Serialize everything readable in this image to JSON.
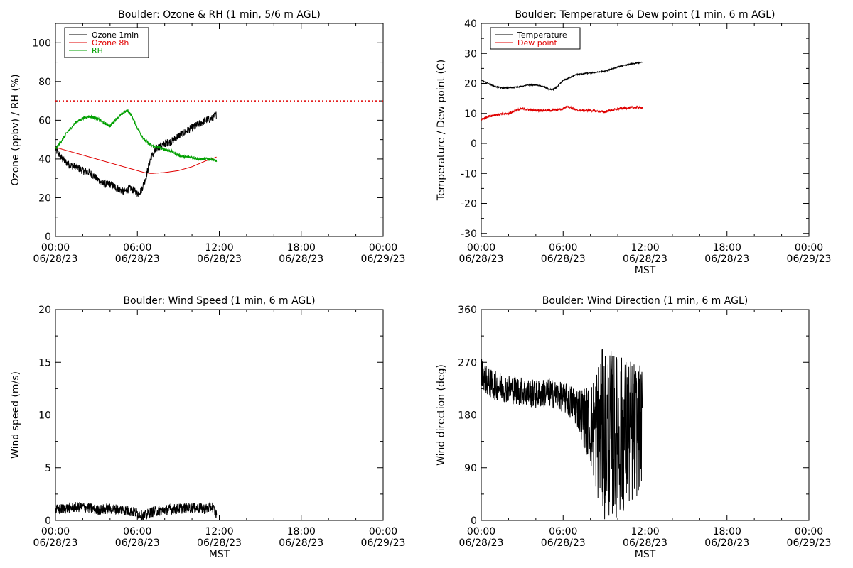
{
  "chart_data": [
    {
      "id": "ozone-rh",
      "type": "line",
      "title": "Boulder: Ozone & RH (1 min, 5/6 m AGL)",
      "ylabel": "Ozone (ppbv) / RH (%)",
      "xlabel": "",
      "ylim": [
        0,
        110
      ],
      "yticks": [
        0,
        20,
        40,
        60,
        80,
        100
      ],
      "xlim_hours": [
        0,
        24
      ],
      "xticks": [
        {
          "hour": 0,
          "time": "00:00",
          "date": "06/28/23"
        },
        {
          "hour": 6,
          "time": "06:00",
          "date": "06/28/23"
        },
        {
          "hour": 12,
          "time": "12:00",
          "date": "06/28/23"
        },
        {
          "hour": 18,
          "time": "18:00",
          "date": "06/28/23"
        },
        {
          "hour": 24,
          "time": "00:00",
          "date": "06/29/23"
        }
      ],
      "reference_line": {
        "y": 70,
        "color": "#e00000",
        "style": "dotted"
      },
      "legend": {
        "position": "top-left",
        "entries": [
          {
            "label": "Ozone 1min",
            "color": "#000000"
          },
          {
            "label": "Ozone 8h",
            "color": "#e00000"
          },
          {
            "label": "RH",
            "color": "#00a000"
          }
        ]
      },
      "series": [
        {
          "name": "Ozone 1min",
          "color": "#000000",
          "noise": 2.0,
          "points": [
            [
              0,
              45
            ],
            [
              0.5,
              40
            ],
            [
              1,
              37
            ],
            [
              1.5,
              36
            ],
            [
              2,
              34
            ],
            [
              2.5,
              33
            ],
            [
              3,
              30
            ],
            [
              3.5,
              27
            ],
            [
              4,
              27
            ],
            [
              4.5,
              25
            ],
            [
              5,
              23
            ],
            [
              5.5,
              25
            ],
            [
              6,
              22
            ],
            [
              6.3,
              24
            ],
            [
              6.6,
              30
            ],
            [
              7,
              41
            ],
            [
              7.5,
              46
            ],
            [
              8,
              48
            ],
            [
              8.5,
              49
            ],
            [
              9,
              52
            ],
            [
              9.5,
              54
            ],
            [
              10,
              56
            ],
            [
              10.5,
              58
            ],
            [
              11,
              60
            ],
            [
              11.5,
              61
            ],
            [
              11.8,
              63
            ]
          ]
        },
        {
          "name": "Ozone 8h",
          "color": "#e00000",
          "noise": 0,
          "points": [
            [
              0,
              46
            ],
            [
              1,
              44
            ],
            [
              2,
              42
            ],
            [
              3,
              40
            ],
            [
              4,
              38
            ],
            [
              5,
              36
            ],
            [
              6,
              34
            ],
            [
              6.5,
              33
            ],
            [
              7,
              32.5
            ],
            [
              8,
              33
            ],
            [
              9,
              34
            ],
            [
              10,
              36
            ],
            [
              11,
              39
            ],
            [
              11.8,
              41
            ]
          ]
        },
        {
          "name": "RH",
          "color": "#00a000",
          "noise": 0.8,
          "points": [
            [
              0,
              45
            ],
            [
              0.5,
              50
            ],
            [
              1,
              55
            ],
            [
              1.5,
              59
            ],
            [
              2,
              61
            ],
            [
              2.5,
              62
            ],
            [
              3,
              61
            ],
            [
              3.5,
              59
            ],
            [
              4,
              57
            ],
            [
              4.5,
              61
            ],
            [
              5,
              64
            ],
            [
              5.3,
              65
            ],
            [
              5.6,
              62
            ],
            [
              6,
              56
            ],
            [
              6.5,
              50
            ],
            [
              7,
              47
            ],
            [
              7.5,
              46
            ],
            [
              8,
              45
            ],
            [
              8.5,
              44
            ],
            [
              9,
              42
            ],
            [
              9.5,
              41
            ],
            [
              10,
              41
            ],
            [
              10.5,
              40
            ],
            [
              11,
              40
            ],
            [
              11.5,
              40
            ],
            [
              11.8,
              39
            ]
          ]
        }
      ]
    },
    {
      "id": "temp-dew",
      "type": "line",
      "title": "Boulder: Temperature & Dew point (1 min, 6 m AGL)",
      "ylabel": "Temperature / Dew point (C)",
      "xlabel": "MST",
      "ylim": [
        -31,
        40
      ],
      "yticks": [
        -30,
        -20,
        -10,
        0,
        10,
        20,
        30,
        40
      ],
      "xlim_hours": [
        0,
        24
      ],
      "xticks": [
        {
          "hour": 0,
          "time": "00:00",
          "date": "06/28/23"
        },
        {
          "hour": 6,
          "time": "06:00",
          "date": "06/28/23"
        },
        {
          "hour": 12,
          "time": "12:00",
          "date": "06/28/23"
        },
        {
          "hour": 18,
          "time": "18:00",
          "date": "06/28/23"
        },
        {
          "hour": 24,
          "time": "00:00",
          "date": "06/29/23"
        }
      ],
      "legend": {
        "position": "top-left",
        "entries": [
          {
            "label": "Temperature",
            "color": "#000000"
          },
          {
            "label": "Dew point",
            "color": "#e00000"
          }
        ]
      },
      "series": [
        {
          "name": "Temperature",
          "color": "#000000",
          "noise": 0.2,
          "points": [
            [
              0,
              21
            ],
            [
              0.5,
              20
            ],
            [
              1,
              19
            ],
            [
              1.5,
              18.5
            ],
            [
              2,
              18.5
            ],
            [
              3,
              19
            ],
            [
              3.5,
              19.5
            ],
            [
              4,
              19.5
            ],
            [
              4.5,
              19
            ],
            [
              5,
              18
            ],
            [
              5.3,
              18
            ],
            [
              5.6,
              19
            ],
            [
              6,
              21
            ],
            [
              6.5,
              22
            ],
            [
              7,
              23
            ],
            [
              8,
              23.5
            ],
            [
              9,
              24
            ],
            [
              10,
              25.5
            ],
            [
              11,
              26.5
            ],
            [
              11.8,
              27
            ]
          ]
        },
        {
          "name": "Dew point",
          "color": "#e00000",
          "noise": 0.4,
          "points": [
            [
              0,
              8
            ],
            [
              0.5,
              9
            ],
            [
              1,
              9.5
            ],
            [
              2,
              10
            ],
            [
              2.5,
              11
            ],
            [
              3,
              11.5
            ],
            [
              4,
              11
            ],
            [
              5,
              11
            ],
            [
              6,
              11.5
            ],
            [
              6.3,
              12.5
            ],
            [
              7,
              11
            ],
            [
              8,
              11
            ],
            [
              9,
              10.5
            ],
            [
              10,
              11.5
            ],
            [
              11,
              12
            ],
            [
              11.8,
              12
            ]
          ]
        }
      ]
    },
    {
      "id": "wind-speed",
      "type": "line",
      "title": "Boulder: Wind Speed (1 min, 6 m AGL)",
      "ylabel": "Wind speed (m/s)",
      "xlabel": "MST",
      "ylim": [
        0,
        20
      ],
      "yticks": [
        0,
        5,
        10,
        15,
        20
      ],
      "xlim_hours": [
        0,
        24
      ],
      "xticks": [
        {
          "hour": 0,
          "time": "00:00",
          "date": "06/28/23"
        },
        {
          "hour": 6,
          "time": "06:00",
          "date": "06/28/23"
        },
        {
          "hour": 12,
          "time": "12:00",
          "date": "06/28/23"
        },
        {
          "hour": 18,
          "time": "18:00",
          "date": "06/28/23"
        },
        {
          "hour": 24,
          "time": "00:00",
          "date": "06/29/23"
        }
      ],
      "series": [
        {
          "name": "",
          "color": "#000000",
          "noise": 0.5,
          "points": [
            [
              0,
              1.0
            ],
            [
              1,
              1.2
            ],
            [
              2,
              1.3
            ],
            [
              3,
              1.0
            ],
            [
              4,
              1.1
            ],
            [
              5,
              1.0
            ],
            [
              6,
              0.7
            ],
            [
              6.5,
              0.4
            ],
            [
              7,
              0.8
            ],
            [
              8,
              1.0
            ],
            [
              9,
              1.1
            ],
            [
              10,
              1.2
            ],
            [
              11,
              1.1
            ],
            [
              11.5,
              1.3
            ],
            [
              11.8,
              0.5
            ]
          ]
        }
      ]
    },
    {
      "id": "wind-dir",
      "type": "line",
      "title": "Boulder: Wind Direction (1 min, 6 m AGL)",
      "ylabel": "Wind direction (deg)",
      "xlabel": "MST",
      "ylim": [
        0,
        360
      ],
      "yticks": [
        0,
        90,
        180,
        270,
        360
      ],
      "xlim_hours": [
        0,
        24
      ],
      "xticks": [
        {
          "hour": 0,
          "time": "00:00",
          "date": "06/28/23"
        },
        {
          "hour": 6,
          "time": "06:00",
          "date": "06/28/23"
        },
        {
          "hour": 12,
          "time": "12:00",
          "date": "06/28/23"
        },
        {
          "hour": 18,
          "time": "18:00",
          "date": "06/28/23"
        },
        {
          "hour": 24,
          "time": "00:00",
          "date": "06/29/23"
        }
      ],
      "series": [
        {
          "name": "",
          "color": "#000000",
          "noise_profile": [
            [
              0,
              25
            ],
            [
              6,
              25
            ],
            [
              7,
              35
            ],
            [
              8,
              70
            ],
            [
              8.5,
              120
            ],
            [
              9,
              150
            ],
            [
              11,
              130
            ],
            [
              11.8,
              100
            ]
          ],
          "points": [
            [
              0,
              255
            ],
            [
              0.5,
              235
            ],
            [
              1,
              230
            ],
            [
              1.5,
              228
            ],
            [
              2,
              225
            ],
            [
              3,
              220
            ],
            [
              4,
              215
            ],
            [
              5,
              218
            ],
            [
              6,
              210
            ],
            [
              7,
              195
            ],
            [
              8,
              160
            ],
            [
              9,
              150
            ],
            [
              10,
              145
            ],
            [
              11,
              150
            ],
            [
              11.8,
              160
            ]
          ]
        }
      ]
    }
  ]
}
